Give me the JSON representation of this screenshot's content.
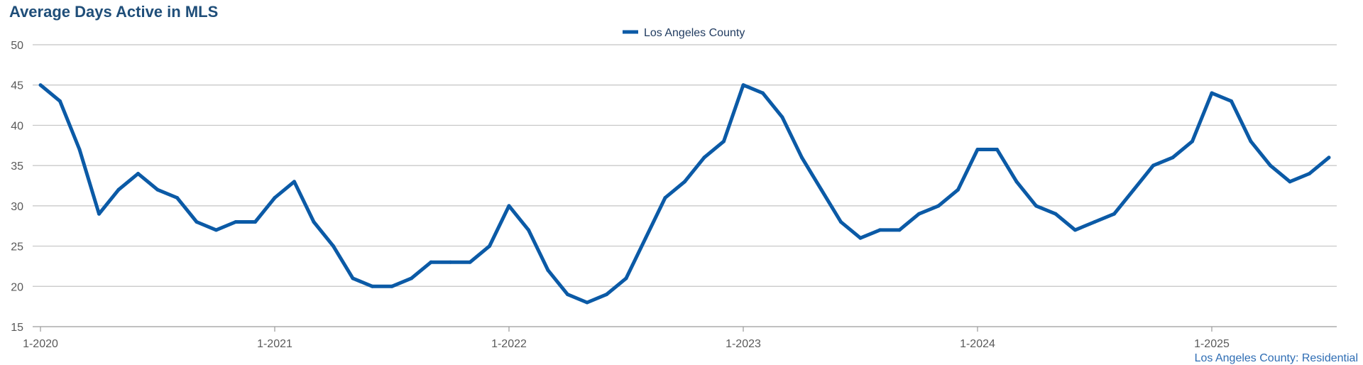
{
  "chart_data": {
    "type": "line",
    "title": "Average Days Active in MLS",
    "footer": "Los Angeles County: Residential",
    "xlabel": "",
    "ylabel": "",
    "ylim": [
      15,
      50
    ],
    "yticks": [
      15,
      20,
      25,
      30,
      35,
      40,
      45,
      50
    ],
    "xtick_labels": [
      "1-2020",
      "1-2021",
      "1-2022",
      "1-2023",
      "1-2024",
      "1-2025"
    ],
    "grid": true,
    "legend_position": "top-center",
    "x": [
      "1-2020",
      "2-2020",
      "3-2020",
      "4-2020",
      "5-2020",
      "6-2020",
      "7-2020",
      "8-2020",
      "9-2020",
      "10-2020",
      "11-2020",
      "12-2020",
      "1-2021",
      "2-2021",
      "3-2021",
      "4-2021",
      "5-2021",
      "6-2021",
      "7-2021",
      "8-2021",
      "9-2021",
      "10-2021",
      "11-2021",
      "12-2021",
      "1-2022",
      "2-2022",
      "3-2022",
      "4-2022",
      "5-2022",
      "6-2022",
      "7-2022",
      "8-2022",
      "9-2022",
      "10-2022",
      "11-2022",
      "12-2022",
      "1-2023",
      "2-2023",
      "3-2023",
      "4-2023",
      "5-2023",
      "6-2023",
      "7-2023",
      "8-2023",
      "9-2023",
      "10-2023",
      "11-2023",
      "12-2023",
      "1-2024",
      "2-2024",
      "3-2024",
      "4-2024",
      "5-2024",
      "6-2024",
      "7-2024",
      "8-2024",
      "9-2024",
      "10-2024",
      "11-2024",
      "12-2024",
      "1-2025",
      "2-2025",
      "3-2025",
      "4-2025",
      "5-2025",
      "6-2025",
      "7-2025"
    ],
    "series": [
      {
        "name": "Los Angeles County",
        "color": "#0b5aa6",
        "values": [
          45,
          43,
          37,
          29,
          32,
          34,
          32,
          31,
          28,
          27,
          28,
          28,
          31,
          33,
          28,
          25,
          21,
          20,
          20,
          21,
          23,
          23,
          23,
          25,
          30,
          27,
          22,
          19,
          18,
          19,
          21,
          26,
          31,
          33,
          36,
          38,
          45,
          44,
          41,
          36,
          32,
          28,
          26,
          27,
          27,
          29,
          30,
          32,
          37,
          37,
          33,
          30,
          29,
          27,
          28,
          29,
          32,
          35,
          36,
          38,
          44,
          43,
          38,
          35,
          33,
          34,
          36
        ]
      }
    ]
  }
}
